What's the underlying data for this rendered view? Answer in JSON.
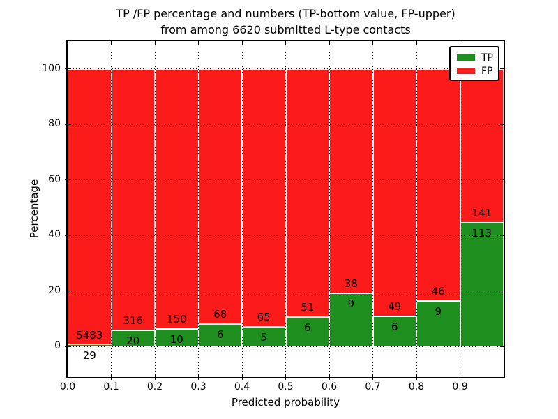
{
  "chart_data": {
    "type": "bar",
    "stacked": true,
    "normalized_to_percent": 100,
    "title_lines": [
      "TP /FP percentage and numbers (TP-bottom value, FP-upper)",
      "from among 6620 submitted L-type contacts"
    ],
    "total_contacts": 6620,
    "xlabel": "Predicted probability",
    "ylabel": "Percentage",
    "xlim": [
      0.0,
      1.0
    ],
    "ylim": [
      -11,
      110
    ],
    "bin_width": 0.1,
    "xticks": [
      "0.0",
      "0.1",
      "0.2",
      "0.3",
      "0.4",
      "0.5",
      "0.6",
      "0.7",
      "0.8",
      "0.9"
    ],
    "yticks": [
      0,
      20,
      40,
      60,
      80,
      100
    ],
    "grid": {
      "style": "dotted",
      "color": "#000000",
      "horizontal": true,
      "vertical": true
    },
    "categories": [
      "0.0-0.1",
      "0.1-0.2",
      "0.2-0.3",
      "0.3-0.4",
      "0.4-0.5",
      "0.5-0.6",
      "0.6-0.7",
      "0.7-0.8",
      "0.8-0.9",
      "0.9-1.0"
    ],
    "series": [
      {
        "name": "TP",
        "color": "#1e8e1e",
        "counts": [
          29,
          20,
          10,
          6,
          5,
          6,
          9,
          6,
          9,
          113
        ]
      },
      {
        "name": "FP",
        "color": "#fb1b1b",
        "counts": [
          5483,
          316,
          150,
          68,
          65,
          51,
          38,
          49,
          46,
          141
        ]
      }
    ],
    "tp_percent": [
      0.53,
      5.95,
      6.25,
      8.11,
      7.14,
      10.53,
      19.15,
      10.91,
      16.36,
      44.49
    ],
    "fp_percent": [
      99.47,
      94.05,
      93.75,
      91.89,
      92.86,
      89.47,
      80.85,
      89.09,
      83.64,
      55.51
    ],
    "bar_edge_color": "#ffffff",
    "legend": {
      "position": "upper right",
      "entries": [
        {
          "label": "TP",
          "color": "#1e8e1e"
        },
        {
          "label": "FP",
          "color": "#fb1b1b"
        }
      ]
    }
  }
}
